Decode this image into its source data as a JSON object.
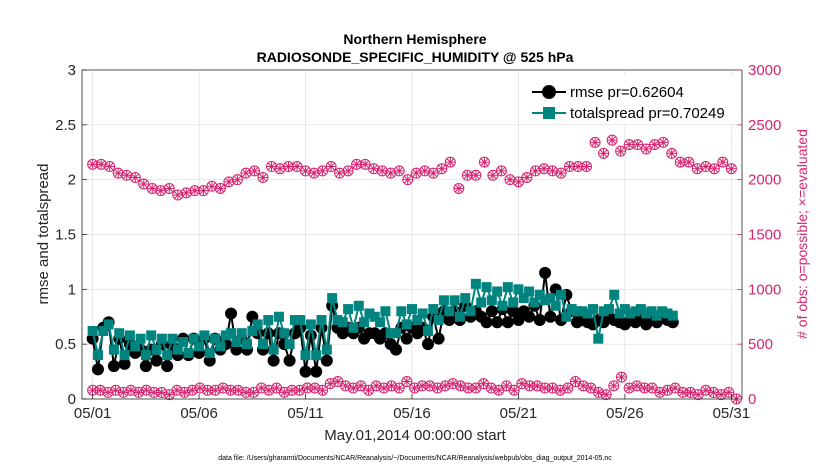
{
  "chart_data": {
    "type": "line",
    "title_lines": [
      "Northern Hemisphere",
      "RADIOSONDE_SPECIFIC_HUMIDITY @ 525 hPa"
    ],
    "xlabel": "May.01,2014 00:00:00 start",
    "ylabel_left": "rmse and totalspread",
    "ylabel_right": "# of obs: o=possible; ×=evaluated",
    "x_tick_labels": [
      "05/01",
      "05/06",
      "05/11",
      "05/16",
      "05/21",
      "05/26",
      "05/31"
    ],
    "y_left_ticks": [
      "0",
      "0.5",
      "1",
      "1.5",
      "2",
      "2.5",
      "3"
    ],
    "y_right_ticks": [
      "0",
      "500",
      "1000",
      "1500",
      "2000",
      "2500",
      "3000"
    ],
    "xlim": [
      0.5,
      31.5
    ],
    "ylim_left": [
      0,
      3
    ],
    "ylim_right": [
      0,
      3000
    ],
    "x_tick_days": [
      1,
      6,
      11,
      16,
      21,
      26,
      31
    ],
    "grid": true,
    "legend_position": "top-right",
    "footnote": "data file: /Users/gharamti/Documents/NCAR/Reanalysis/~/Documents/NCAR/Reanalysis/webpub/obs_diag_output_2014-05.nc",
    "series": [
      {
        "name": "rmse pr=0.62604",
        "color": "#000000",
        "axis": "left",
        "values": [
          0.55,
          0.27,
          0.65,
          0.7,
          0.3,
          0.55,
          0.32,
          0.5,
          0.42,
          0.45,
          0.3,
          0.45,
          0.35,
          0.5,
          0.3,
          0.48,
          0.4,
          0.55,
          0.4,
          0.55,
          0.42,
          0.55,
          0.35,
          0.55,
          0.45,
          0.5,
          0.78,
          0.45,
          0.55,
          0.45,
          0.75,
          0.6,
          0.45,
          0.6,
          0.35,
          0.6,
          0.5,
          0.35,
          0.6,
          0.65,
          0.25,
          0.58,
          0.25,
          0.65,
          0.35,
          0.85,
          0.65,
          0.6,
          0.65,
          0.6,
          0.65,
          0.55,
          0.6,
          0.6,
          0.55,
          0.6,
          0.5,
          0.45,
          0.65,
          0.55,
          0.65,
          0.6,
          0.65,
          0.5,
          0.75,
          0.55,
          0.8,
          0.72,
          0.8,
          0.72,
          0.85,
          0.75,
          0.8,
          0.75,
          0.7,
          0.8,
          0.7,
          0.82,
          0.7,
          0.8,
          0.72,
          0.8,
          0.75,
          0.85,
          0.72,
          1.15,
          0.75,
          1.0,
          0.72,
          0.95,
          0.8,
          0.7,
          0.72,
          0.7,
          0.68,
          0.72,
          0.7,
          0.75,
          0.72,
          0.7,
          0.68,
          0.72,
          0.7,
          0.75,
          0.68,
          0.72,
          0.7,
          0.78,
          0.72,
          0.7
        ]
      },
      {
        "name": "totalspread pr=0.70249",
        "color": "#00847f",
        "axis": "left",
        "values": [
          0.62,
          0.4,
          0.62,
          0.68,
          0.45,
          0.6,
          0.4,
          0.58,
          0.48,
          0.55,
          0.4,
          0.58,
          0.45,
          0.55,
          0.4,
          0.55,
          0.45,
          0.52,
          0.42,
          0.55,
          0.48,
          0.58,
          0.42,
          0.55,
          0.48,
          0.58,
          0.6,
          0.52,
          0.6,
          0.5,
          0.62,
          0.68,
          0.5,
          0.72,
          0.45,
          0.75,
          0.6,
          0.5,
          0.72,
          0.72,
          0.4,
          0.68,
          0.4,
          0.72,
          0.45,
          0.92,
          0.72,
          0.7,
          0.82,
          0.65,
          0.85,
          0.7,
          0.78,
          0.75,
          0.7,
          0.8,
          0.6,
          0.6,
          0.8,
          0.68,
          0.82,
          0.72,
          0.78,
          0.62,
          0.82,
          0.72,
          0.9,
          0.8,
          0.9,
          0.75,
          0.92,
          0.8,
          1.05,
          0.88,
          1.02,
          0.9,
          0.98,
          0.85,
          1.02,
          0.88,
          1.0,
          0.92,
          0.98,
          0.88,
          0.95,
          0.9,
          0.92,
          0.85,
          0.95,
          0.75,
          0.82,
          0.8,
          0.8,
          0.78,
          0.82,
          0.55,
          0.8,
          0.82,
          0.95,
          0.78,
          0.82,
          0.78,
          0.8,
          0.82,
          0.78,
          0.8,
          0.76,
          0.8,
          0.78,
          0.76
        ]
      },
      {
        "name": "possible",
        "color": "#d6246f",
        "axis": "right",
        "values": [
          2140,
          2140,
          2120,
          2060,
          2040,
          2020,
          1960,
          1920,
          1900,
          1920,
          1860,
          1880,
          1900,
          1900,
          1940,
          1920,
          1980,
          2000,
          2060,
          2080,
          2020,
          2120,
          2100,
          2120,
          2120,
          2080,
          2060,
          2080,
          2120,
          2060,
          2080,
          2140,
          2140,
          2100,
          2080,
          2060,
          2080,
          2000,
          2060,
          2080,
          2060,
          2100,
          2160,
          1920,
          2040,
          2040,
          2160,
          2040,
          2080,
          2000,
          1980,
          2020,
          2080,
          2100,
          2080,
          2060,
          2120,
          2120,
          2120,
          2340,
          2240,
          2360,
          2260,
          2320,
          2320,
          2280,
          2320,
          2340,
          2240,
          2160,
          2160,
          2100,
          2120,
          2100,
          2160,
          2100
        ],
        "x_start": 1,
        "x_step": 0.4
      },
      {
        "name": "evaluated",
        "color": "#d6246f",
        "axis": "right",
        "values": [
          80,
          80,
          60,
          80,
          60,
          80,
          60,
          80,
          60,
          60,
          40,
          80,
          60,
          80,
          100,
          80,
          80,
          100,
          80,
          80,
          60,
          60,
          100,
          80,
          100,
          60,
          80,
          80,
          100,
          100,
          80,
          140,
          160,
          120,
          100,
          120,
          80,
          120,
          100,
          120,
          100,
          160,
          100,
          120,
          120,
          100,
          120,
          140,
          120,
          100,
          100,
          140,
          100,
          80,
          120,
          80,
          140,
          120,
          120,
          100,
          100,
          80,
          100,
          160,
          120,
          100,
          60,
          40,
          120,
          200,
          100,
          120,
          100,
          100,
          60,
          80,
          100,
          60,
          60,
          40,
          80,
          60,
          40,
          60,
          0
        ],
        "x_start": 1,
        "x_step": 0.36
      }
    ]
  }
}
